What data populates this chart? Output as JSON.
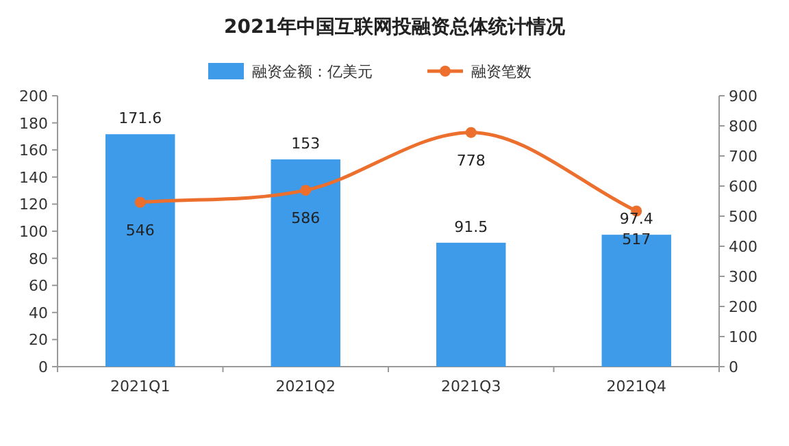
{
  "chart_data": {
    "type": "bar",
    "title": "2021年中国互联网投融资总体统计情况",
    "categories": [
      "2021Q1",
      "2021Q2",
      "2021Q3",
      "2021Q4"
    ],
    "series": [
      {
        "name": "融资金额：亿美元",
        "color": "#3d9be9",
        "values": [
          171.6,
          153,
          91.5,
          97.4
        ]
      },
      {
        "name": "融资笔数",
        "type": "line",
        "axis": "y2",
        "color": "#ec6f2d",
        "marker": "circle",
        "values": [
          546,
          586,
          778,
          517
        ]
      }
    ],
    "ylim": [
      0,
      200
    ],
    "yticks": [
      0,
      20,
      40,
      60,
      80,
      100,
      120,
      140,
      160,
      180,
      200
    ],
    "y2lim": [
      0,
      900
    ],
    "y2ticks": [
      0,
      100,
      200,
      300,
      400,
      500,
      600,
      700,
      800,
      900
    ],
    "data_labels": true,
    "legend": "top"
  }
}
